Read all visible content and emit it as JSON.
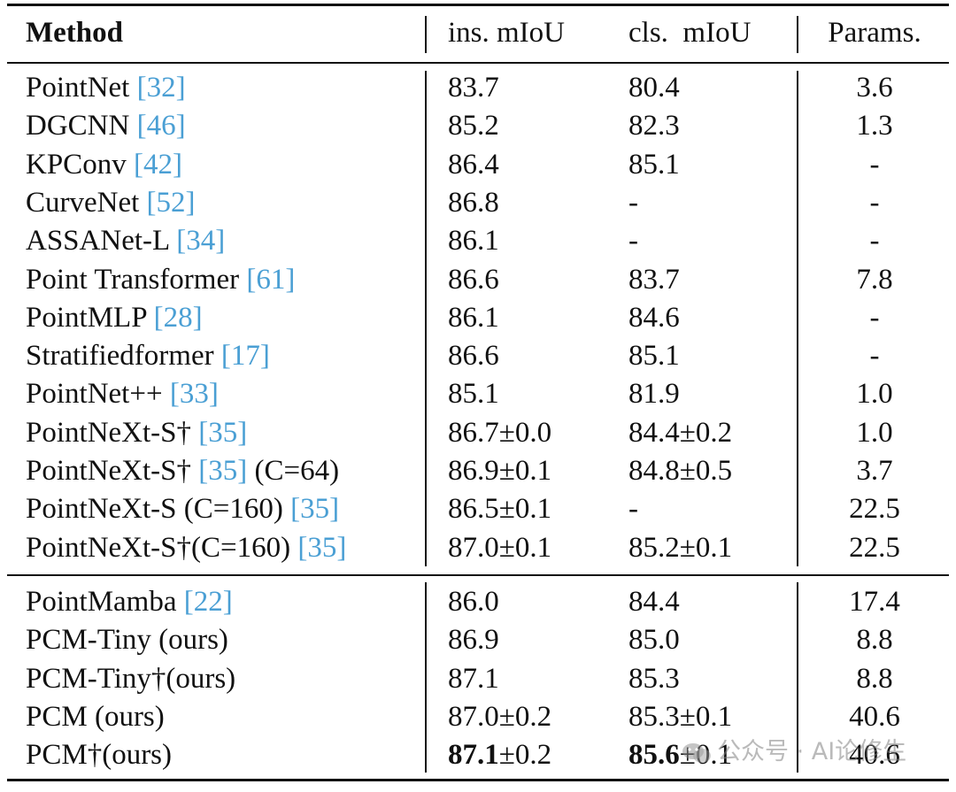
{
  "header": {
    "method": "Method",
    "ins_miou": "ins. mIoU",
    "cls_miou": "cls.  mIoU",
    "params": "Params."
  },
  "section1": [
    {
      "name": "PointNet ",
      "ref": "32",
      "suffix": "",
      "ins": "83.7",
      "ins_pm": "",
      "cls": "80.4",
      "cls_pm": "",
      "params": "3.6"
    },
    {
      "name": "DGCNN ",
      "ref": "46",
      "suffix": "",
      "ins": "85.2",
      "ins_pm": "",
      "cls": "82.3",
      "cls_pm": "",
      "params": "1.3"
    },
    {
      "name": "KPConv ",
      "ref": "42",
      "suffix": "",
      "ins": "86.4",
      "ins_pm": "",
      "cls": "85.1",
      "cls_pm": "",
      "params": "-"
    },
    {
      "name": "CurveNet ",
      "ref": "52",
      "suffix": "",
      "ins": "86.8",
      "ins_pm": "",
      "cls": "-",
      "cls_pm": "",
      "params": "-"
    },
    {
      "name": "ASSANet-L ",
      "ref": "34",
      "suffix": "",
      "ins": "86.1",
      "ins_pm": "",
      "cls": "-",
      "cls_pm": "",
      "params": "-"
    },
    {
      "name": "Point Transformer ",
      "ref": "61",
      "suffix": "",
      "ins": "86.6",
      "ins_pm": "",
      "cls": "83.7",
      "cls_pm": "",
      "params": "7.8"
    },
    {
      "name": "PointMLP ",
      "ref": "28",
      "suffix": "",
      "ins": "86.1",
      "ins_pm": "",
      "cls": "84.6",
      "cls_pm": "",
      "params": "-"
    },
    {
      "name": "Stratifiedformer ",
      "ref": "17",
      "suffix": "",
      "ins": "86.6",
      "ins_pm": "",
      "cls": "85.1",
      "cls_pm": "",
      "params": "-"
    },
    {
      "name": "PointNet++ ",
      "ref": "33",
      "suffix": "",
      "ins": "85.1",
      "ins_pm": "",
      "cls": "81.9",
      "cls_pm": "",
      "params": "1.0"
    },
    {
      "name": "PointNeXt-S† ",
      "ref": "35",
      "suffix": "",
      "ins": "86.7",
      "ins_pm": "±0.0",
      "cls": "84.4",
      "cls_pm": "±0.2",
      "params": "1.0"
    },
    {
      "name": "PointNeXt-S† ",
      "ref": "35",
      "suffix": " (C=64)",
      "ins": "86.9",
      "ins_pm": "±0.1",
      "cls": "84.8",
      "cls_pm": "±0.5",
      "params": "3.7"
    },
    {
      "name": "PointNeXt-S (C=160) ",
      "ref": "35",
      "suffix": "",
      "ins": "86.5",
      "ins_pm": "±0.1",
      "cls": "-",
      "cls_pm": "",
      "params": "22.5"
    },
    {
      "name": "PointNeXt-S†(C=160) ",
      "ref": "35",
      "suffix": "",
      "ins": "87.0",
      "ins_pm": "±0.1",
      "cls": "85.2",
      "cls_pm": "±0.1",
      "params": "22.5"
    }
  ],
  "section2": [
    {
      "name": "PointMamba ",
      "ref": "22",
      "suffix": "",
      "ins": "86.0",
      "ins_pm": "",
      "cls": "84.4",
      "cls_pm": "",
      "params": "17.4"
    },
    {
      "name": "PCM-Tiny (ours)",
      "ref": "",
      "suffix": "",
      "ins": "86.9",
      "ins_pm": "",
      "cls": "85.0",
      "cls_pm": "",
      "params": "8.8"
    },
    {
      "name": "PCM-Tiny†(ours)",
      "ref": "",
      "suffix": "",
      "ins": "87.1",
      "ins_pm": "",
      "cls": "85.3",
      "cls_pm": "",
      "params": "8.8"
    },
    {
      "name": "PCM (ours)",
      "ref": "",
      "suffix": "",
      "ins": "87.0",
      "ins_pm": "±0.2",
      "cls": "85.3",
      "cls_pm": "±0.1",
      "params": "40.6"
    },
    {
      "name": "PCM†(ours)",
      "ref": "",
      "suffix": "",
      "ins": "87.1",
      "ins_pm": "±0.2",
      "cls": "85.6",
      "cls_pm": "±0.1",
      "params": "40.6",
      "bold_values": true
    }
  ],
  "watermark": {
    "text": "公众号 · AI论修生",
    "icon": "wechat-icon",
    "color": "#8c8c8c"
  },
  "colors": {
    "reference": "#4a9fd4",
    "text": "#111111",
    "rules": "#111111"
  }
}
